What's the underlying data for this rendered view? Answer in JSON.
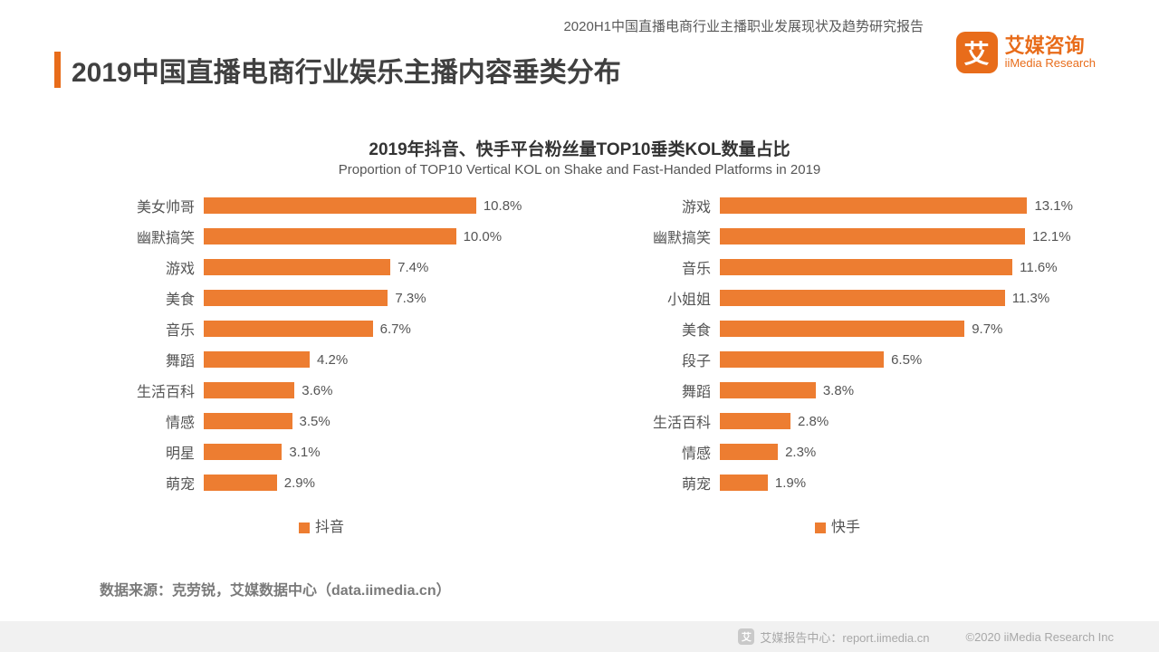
{
  "header_text": "2020H1中国直播电商行业主播职业发展现状及趋势研究报告",
  "logo": {
    "cn": "艾媒咨询",
    "en": "iiMedia Research",
    "mark": "艾"
  },
  "main_title": "2019中国直播电商行业娱乐主播内容垂类分布",
  "chart_title_cn": "2019年抖音、快手平台粉丝量TOP10垂类KOL数量占比",
  "chart_title_en": "Proportion of TOP10 Vertical KOL on Shake and Fast-Handed Platforms in 2019",
  "bar_color": "#ed7d31",
  "x_max_percent": 14,
  "left_chart": {
    "legend": "抖音",
    "rows": [
      {
        "label": "美女帅哥",
        "value": 10.8,
        "display": "10.8%"
      },
      {
        "label": "幽默搞笑",
        "value": 10.0,
        "display": "10.0%"
      },
      {
        "label": "游戏",
        "value": 7.4,
        "display": "7.4%"
      },
      {
        "label": "美食",
        "value": 7.3,
        "display": "7.3%"
      },
      {
        "label": "音乐",
        "value": 6.7,
        "display": "6.7%"
      },
      {
        "label": "舞蹈",
        "value": 4.2,
        "display": "4.2%"
      },
      {
        "label": "生活百科",
        "value": 3.6,
        "display": "3.6%"
      },
      {
        "label": "情感",
        "value": 3.5,
        "display": "3.5%"
      },
      {
        "label": "明星",
        "value": 3.1,
        "display": "3.1%"
      },
      {
        "label": "萌宠",
        "value": 2.9,
        "display": "2.9%"
      }
    ]
  },
  "right_chart": {
    "legend": "快手",
    "rows": [
      {
        "label": "游戏",
        "value": 13.1,
        "display": "13.1%"
      },
      {
        "label": "幽默搞笑",
        "value": 12.1,
        "display": "12.1%"
      },
      {
        "label": "音乐",
        "value": 11.6,
        "display": "11.6%"
      },
      {
        "label": "小姐姐",
        "value": 11.3,
        "display": "11.3%"
      },
      {
        "label": "美食",
        "value": 9.7,
        "display": "9.7%"
      },
      {
        "label": "段子",
        "value": 6.5,
        "display": "6.5%"
      },
      {
        "label": "舞蹈",
        "value": 3.8,
        "display": "3.8%"
      },
      {
        "label": "生活百科",
        "value": 2.8,
        "display": "2.8%"
      },
      {
        "label": "情感",
        "value": 2.3,
        "display": "2.3%"
      },
      {
        "label": "萌宠",
        "value": 1.9,
        "display": "1.9%"
      }
    ]
  },
  "source": "数据来源：克劳锐，艾媒数据中心（data.iimedia.cn）",
  "footer": {
    "report_center": "艾媒报告中心：report.iimedia.cn",
    "copyright": "©2020  iiMedia Research  Inc",
    "mark": "艾"
  }
}
